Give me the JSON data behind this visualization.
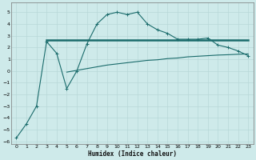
{
  "bg_color": "#ceeaea",
  "grid_color": "#b8d8d8",
  "line_color": "#1a6b6b",
  "xlabel": "Humidex (Indice chaleur)",
  "xlim": [
    -0.5,
    23.5
  ],
  "ylim": [
    -6.2,
    5.8
  ],
  "yticks": [
    -6,
    -5,
    -4,
    -3,
    -2,
    -1,
    0,
    1,
    2,
    3,
    4,
    5
  ],
  "xticks": [
    0,
    1,
    2,
    3,
    4,
    5,
    6,
    7,
    8,
    9,
    10,
    11,
    12,
    13,
    14,
    15,
    16,
    17,
    18,
    19,
    20,
    21,
    22,
    23
  ],
  "line1_x": [
    0,
    1,
    2,
    3,
    4,
    5,
    6,
    7,
    8,
    9,
    10,
    11,
    12,
    13,
    14,
    15,
    16,
    17,
    18,
    19,
    20,
    21,
    22,
    23
  ],
  "line1_y": [
    -5.7,
    -4.5,
    -3.0,
    2.5,
    1.5,
    -1.5,
    0.0,
    2.3,
    4.0,
    4.8,
    5.0,
    4.8,
    5.0,
    4.0,
    3.5,
    3.2,
    2.7,
    2.7,
    2.7,
    2.8,
    2.2,
    2.0,
    1.7,
    1.3
  ],
  "line2_x": [
    3,
    5,
    7,
    8,
    9,
    10,
    11,
    12,
    13,
    14,
    15,
    16,
    17,
    18,
    19,
    20,
    21,
    22,
    23
  ],
  "line2_y": [
    2.6,
    2.6,
    2.6,
    2.6,
    2.6,
    2.6,
    2.6,
    2.6,
    2.6,
    2.6,
    2.6,
    2.6,
    2.6,
    2.6,
    2.6,
    2.6,
    2.6,
    2.6,
    2.6
  ],
  "line3_x": [
    5,
    6,
    7,
    8,
    9,
    10,
    11,
    12,
    13,
    14,
    15,
    16,
    17,
    18,
    19,
    20,
    21,
    22,
    23
  ],
  "line3_y": [
    -0.1,
    0.05,
    0.2,
    0.35,
    0.5,
    0.6,
    0.7,
    0.8,
    0.9,
    0.95,
    1.05,
    1.1,
    1.2,
    1.25,
    1.3,
    1.35,
    1.38,
    1.42,
    1.45
  ]
}
